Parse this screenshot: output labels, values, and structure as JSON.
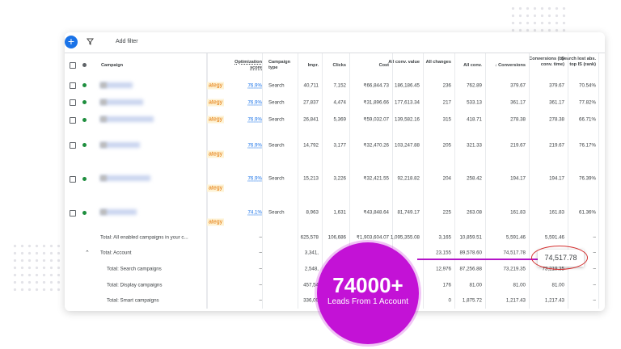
{
  "toolbar": {
    "add_filter": "Add filter"
  },
  "table": {
    "headers": [
      "Campaign",
      "Optimization score",
      "Campaign type",
      "Impr.",
      "Clicks",
      "Cost",
      "All conv. value",
      "All changes",
      "All conv.",
      "↓ Conversions",
      "Conversions (by conv. time)",
      "Search lost abs. top IS (rank)"
    ],
    "rows": [
      {
        "tag": "ategy",
        "cells": [
          "76.9%",
          "Search",
          "40,711",
          "7,152",
          "₹66,844.73",
          "186,186.45",
          "236",
          "762.89",
          "379.67",
          "379.67",
          "70.54%"
        ]
      },
      {
        "tag": "ategy",
        "cells": [
          "76.9%",
          "Search",
          "27,837",
          "4,474",
          "₹31,896.66",
          "177,613.34",
          "217",
          "533.13",
          "361.17",
          "361.17",
          "77.82%"
        ]
      },
      {
        "tag": "ategy",
        "cells": [
          "76.9%",
          "Search",
          "26,841",
          "5,369",
          "₹59,032.07",
          "139,582.16",
          "315",
          "418.71",
          "278.38",
          "278.38",
          "66.71%"
        ]
      },
      {
        "tag": "ategy",
        "cells": [
          "76.9%",
          "Search",
          "14,792",
          "3,177",
          "₹32,470.26",
          "103,247.88",
          "205",
          "321.33",
          "219.67",
          "219.67",
          "76.17%"
        ]
      },
      {
        "tag": "ategy",
        "cells": [
          "76.9%",
          "Search",
          "15,213",
          "3,226",
          "₹32,421.55",
          "92,218.82",
          "204",
          "258.42",
          "194.17",
          "194.17",
          "76.39%"
        ]
      },
      {
        "tag": "ategy",
        "cells": [
          "74.1%",
          "Search",
          "8,963",
          "1,631",
          "₹43,848.64",
          "81,749.17",
          "225",
          "263.08",
          "161.83",
          "161.83",
          "61.36%"
        ]
      }
    ],
    "totals": [
      {
        "label": "Total: All enabled campaigns in your c...",
        "cells": [
          "–",
          null,
          "625,578",
          "106,686",
          "₹1,903,604.07",
          "1,095,355.08",
          "3,165",
          "10,859.51",
          "5,591.46",
          "5,591.46",
          "–"
        ]
      },
      {
        "label": "Total: Account",
        "cells": [
          "–",
          null,
          "3,341,",
          null,
          null,
          null,
          "23,155",
          "89,578.60",
          "74,517.78",
          null,
          "–"
        ]
      },
      {
        "label": "Total: Search campaigns",
        "cells": [
          "–",
          null,
          "2,548,",
          null,
          null,
          null,
          "12,976",
          "87,256.88",
          "73,219.35",
          "73,219.35",
          "–"
        ]
      },
      {
        "label": "Total: Display campaigns",
        "cells": [
          "–",
          null,
          "457,54",
          null,
          null,
          null,
          "176",
          "81.00",
          "81.00",
          "81.00",
          "–"
        ]
      },
      {
        "label": "Total: Smart campaigns",
        "cells": [
          "–",
          null,
          "336,09",
          null,
          null,
          null,
          "0",
          "1,875.72",
          "1,217.43",
          "1,217.43",
          "–"
        ]
      }
    ]
  },
  "callout": "74,517.78",
  "badge": {
    "headline": "74000+",
    "subline": "Leads From 1 Account"
  }
}
